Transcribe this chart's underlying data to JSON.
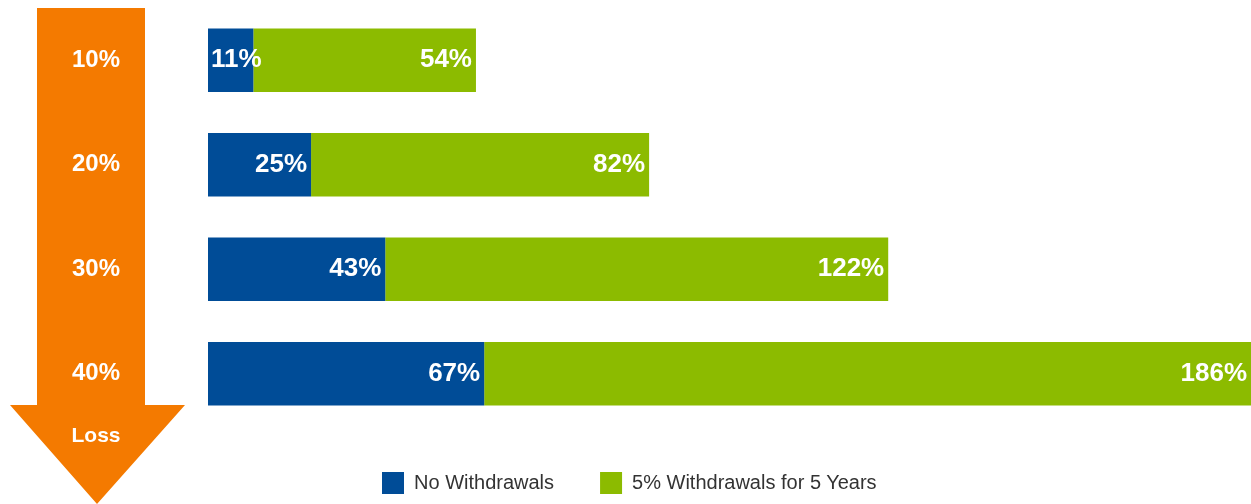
{
  "chart_data": {
    "type": "bar",
    "orientation": "horizontal",
    "stacked": true,
    "categories": [
      "10%",
      "20%",
      "30%",
      "40%"
    ],
    "ylabel": "Loss",
    "legend": "bottom",
    "series": [
      {
        "name": "No Withdrawals",
        "color": "#004c97",
        "values": [
          11,
          25,
          43,
          67
        ],
        "value_labels": [
          "11%",
          "25%",
          "43%",
          "67%"
        ]
      },
      {
        "name": "5% Withdrawals for 5 Years",
        "color": "#8cbb00",
        "values": [
          54,
          82,
          122,
          186
        ],
        "value_labels": [
          "54%",
          "82%",
          "122%",
          "186%"
        ]
      }
    ]
  }
}
